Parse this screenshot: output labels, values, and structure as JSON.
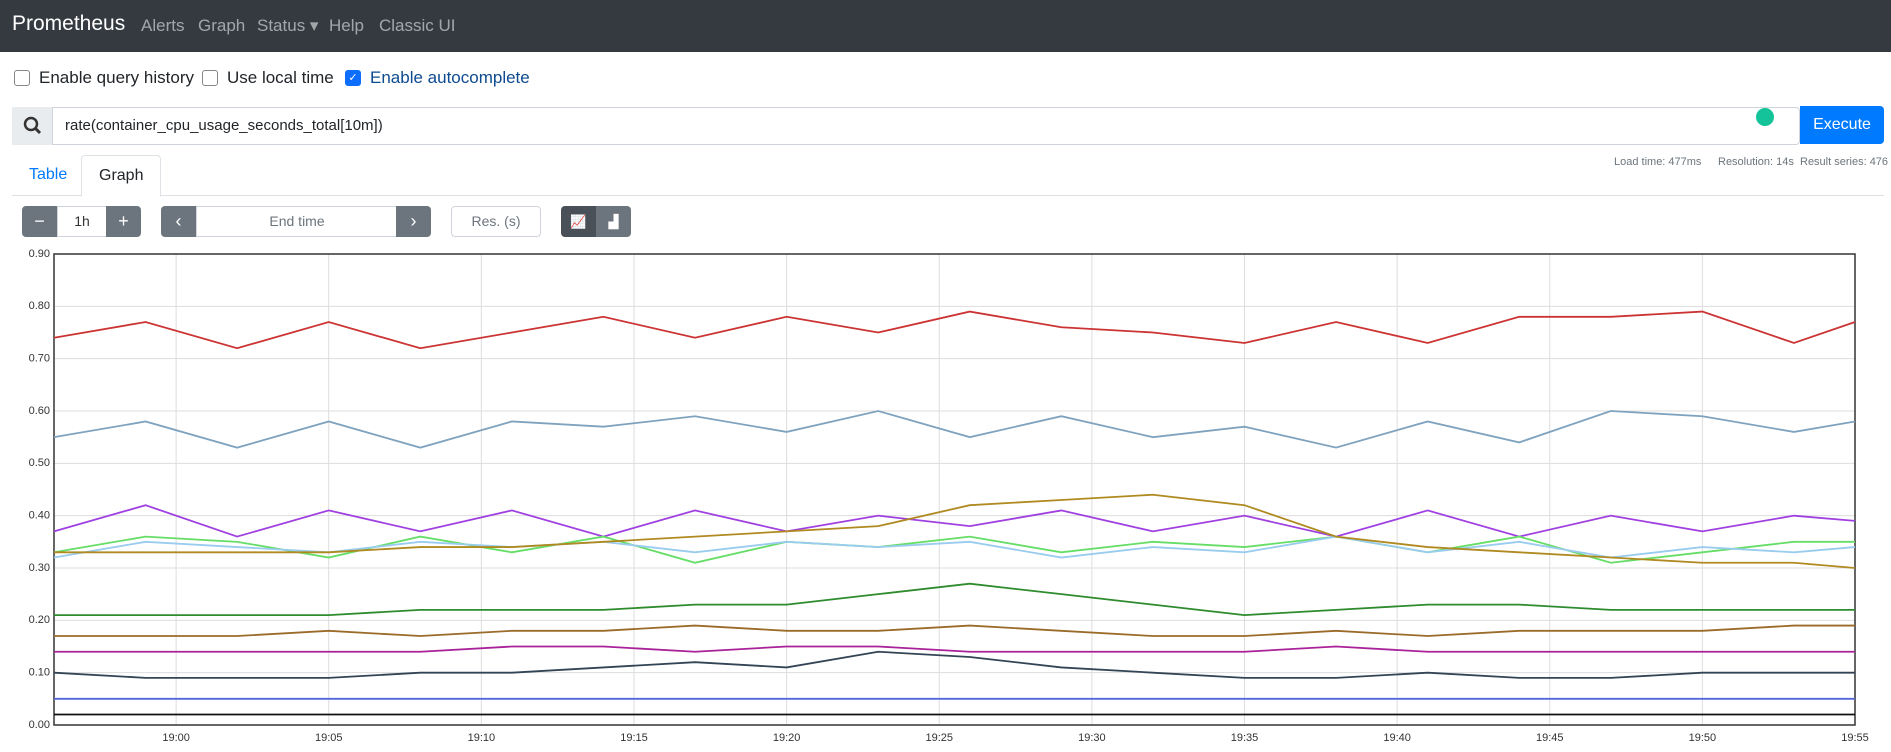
{
  "nav": {
    "brand": "Prometheus",
    "links": [
      "Alerts",
      "Graph",
      "Status",
      "Help",
      "Classic UI"
    ]
  },
  "options": [
    "Enable query history",
    "Use local time",
    "Enable autocomplete"
  ],
  "query": "rate(container_cpu_usage_seconds_total[10m])",
  "execute": "Execute",
  "stats": [
    "Load time: 477ms",
    "Resolution: 14s",
    "Result series: 476"
  ],
  "tabs": [
    "Table",
    "Graph"
  ],
  "controls": {
    "range": "1h",
    "end_time": "End time",
    "resolution": "Res. (s)"
  },
  "chart_data": {
    "type": "line",
    "x": [
      "18:56",
      "18:59",
      "19:02",
      "19:05",
      "19:08",
      "19:11",
      "19:14",
      "19:17",
      "19:20",
      "19:23",
      "19:26",
      "19:29",
      "19:32",
      "19:35",
      "19:38",
      "19:41",
      "19:44",
      "19:47",
      "19:50",
      "19:53",
      "19:55"
    ],
    "xlim": [
      "18:56",
      "19:55"
    ],
    "xticks": [
      "19:00",
      "19:05",
      "19:10",
      "19:15",
      "19:20",
      "19:25",
      "19:30",
      "19:35",
      "19:40",
      "19:45",
      "19:50",
      "19:55"
    ],
    "ylim": [
      0,
      0.9
    ],
    "yticks": [
      {
        "value": 0,
        "label": "0.00"
      },
      {
        "value": 0.1,
        "label": "0.10"
      },
      {
        "value": 0.2,
        "label": "0.20"
      },
      {
        "value": 0.3,
        "label": "0.30"
      },
      {
        "value": 0.4,
        "label": "0.40"
      },
      {
        "value": 0.5,
        "label": "0.50"
      },
      {
        "value": 0.6,
        "label": "0.60"
      },
      {
        "value": 0.7,
        "label": "0.70"
      },
      {
        "value": 0.8,
        "label": "0.80"
      },
      {
        "value": 0.9,
        "label": "0.90"
      }
    ],
    "grid": true,
    "series": [
      {
        "color": "#cc3333",
        "values": [
          0.74,
          0.77,
          0.72,
          0.77,
          0.72,
          0.75,
          0.78,
          0.74,
          0.78,
          0.75,
          0.79,
          0.76,
          0.75,
          0.73,
          0.77,
          0.73,
          0.78,
          0.78,
          0.79,
          0.73,
          0.77
        ]
      },
      {
        "color": "#7fa3bf",
        "values": [
          0.55,
          0.58,
          0.53,
          0.58,
          0.53,
          0.58,
          0.57,
          0.59,
          0.56,
          0.6,
          0.55,
          0.59,
          0.55,
          0.57,
          0.53,
          0.58,
          0.54,
          0.6,
          0.59,
          0.56,
          0.58
        ]
      },
      {
        "color": "#a040e0",
        "values": [
          0.37,
          0.42,
          0.36,
          0.41,
          0.37,
          0.41,
          0.36,
          0.41,
          0.37,
          0.4,
          0.38,
          0.41,
          0.37,
          0.4,
          0.36,
          0.41,
          0.36,
          0.4,
          0.37,
          0.4,
          0.39
        ]
      },
      {
        "color": "#66dd66",
        "values": [
          0.33,
          0.36,
          0.35,
          0.32,
          0.36,
          0.33,
          0.36,
          0.31,
          0.35,
          0.34,
          0.36,
          0.33,
          0.35,
          0.34,
          0.36,
          0.33,
          0.36,
          0.31,
          0.33,
          0.35,
          0.35
        ]
      },
      {
        "color": "#99ccee",
        "values": [
          0.32,
          0.35,
          0.34,
          0.33,
          0.35,
          0.34,
          0.35,
          0.33,
          0.35,
          0.34,
          0.35,
          0.32,
          0.34,
          0.33,
          0.36,
          0.33,
          0.35,
          0.32,
          0.34,
          0.33,
          0.34
        ]
      },
      {
        "color": "#b08a20",
        "values": [
          0.33,
          0.33,
          0.33,
          0.33,
          0.34,
          0.34,
          0.35,
          0.36,
          0.37,
          0.38,
          0.42,
          0.43,
          0.44,
          0.42,
          0.36,
          0.34,
          0.33,
          0.32,
          0.31,
          0.31,
          0.3
        ]
      },
      {
        "color": "#2e8b2e",
        "values": [
          0.21,
          0.21,
          0.21,
          0.21,
          0.22,
          0.22,
          0.22,
          0.23,
          0.23,
          0.25,
          0.27,
          0.25,
          0.23,
          0.21,
          0.22,
          0.23,
          0.23,
          0.22,
          0.22,
          0.22,
          0.22
        ]
      },
      {
        "color": "#9b6b2a",
        "values": [
          0.17,
          0.17,
          0.17,
          0.18,
          0.17,
          0.18,
          0.18,
          0.19,
          0.18,
          0.18,
          0.19,
          0.18,
          0.17,
          0.17,
          0.18,
          0.17,
          0.18,
          0.18,
          0.18,
          0.19,
          0.19
        ]
      },
      {
        "color": "#aa2299",
        "values": [
          0.14,
          0.14,
          0.14,
          0.14,
          0.14,
          0.15,
          0.15,
          0.14,
          0.15,
          0.15,
          0.14,
          0.14,
          0.14,
          0.14,
          0.15,
          0.14,
          0.14,
          0.14,
          0.14,
          0.14,
          0.14
        ]
      },
      {
        "color": "#334455",
        "values": [
          0.1,
          0.09,
          0.09,
          0.09,
          0.1,
          0.1,
          0.11,
          0.12,
          0.11,
          0.14,
          0.13,
          0.11,
          0.1,
          0.09,
          0.09,
          0.1,
          0.09,
          0.09,
          0.1,
          0.1,
          0.1
        ]
      },
      {
        "color": "#5566dd",
        "values": [
          0.05,
          0.05,
          0.05,
          0.05,
          0.05,
          0.05,
          0.05,
          0.05,
          0.05,
          0.05,
          0.05,
          0.05,
          0.05,
          0.05,
          0.05,
          0.05,
          0.05,
          0.05,
          0.05,
          0.05,
          0.05
        ]
      },
      {
        "color": "#111111",
        "values": [
          0.02,
          0.02,
          0.02,
          0.02,
          0.02,
          0.02,
          0.02,
          0.02,
          0.02,
          0.02,
          0.02,
          0.02,
          0.02,
          0.02,
          0.02,
          0.02,
          0.02,
          0.02,
          0.02,
          0.02,
          0.02
        ]
      }
    ]
  }
}
